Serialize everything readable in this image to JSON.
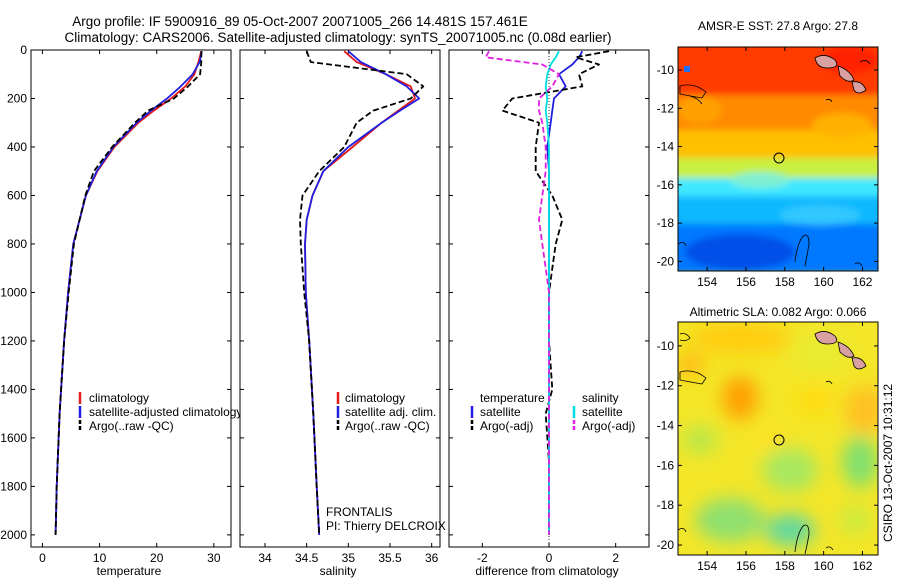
{
  "header": {
    "line1": "Argo profile: IF 5900916_89 05-Oct-2007 20071005_266 14.481S 157.461E",
    "line2": "Climatology: CARS2006. Satellite-adjusted climatology: synTS_20071005.nc (0.08d earlier)"
  },
  "colors": {
    "climatology": "#e41a1c",
    "satellite": "#1f1fe0",
    "argo": "#000000",
    "sal_satellite": "#00e0e0",
    "sal_argo": "#e020e0"
  },
  "chart_data": [
    {
      "id": "temperature",
      "type": "line",
      "xlabel": "temperature",
      "ylabel": "",
      "xlim": [
        -2,
        33
      ],
      "ylim": [
        2050,
        0
      ],
      "xticks": [
        0,
        10,
        20,
        30
      ],
      "yticks": [
        0,
        200,
        400,
        600,
        800,
        1000,
        1200,
        1400,
        1600,
        1800,
        2000
      ],
      "legend": [
        "climatology",
        "satellite-adjusted climatology",
        "Argo(..raw -QC)"
      ],
      "depth": [
        5,
        50,
        100,
        150,
        200,
        250,
        300,
        400,
        500,
        600,
        800,
        1000,
        1200,
        1500,
        1800,
        2000
      ],
      "series": [
        {
          "name": "climatology",
          "values": [
            27.8,
            27.3,
            26.6,
            25.0,
            22.5,
            19.5,
            16.8,
            12.6,
            9.6,
            7.6,
            5.4,
            4.5,
            3.8,
            3.0,
            2.5,
            2.3
          ]
        },
        {
          "name": "satellite-adjusted climatology",
          "values": [
            27.9,
            27.5,
            26.3,
            24.2,
            21.8,
            19.0,
            16.5,
            12.4,
            9.5,
            7.6,
            5.4,
            4.5,
            3.8,
            3.0,
            2.5,
            2.3
          ]
        },
        {
          "name": "Argo(..raw -QC)",
          "values": [
            27.8,
            27.8,
            27.6,
            25.5,
            23.0,
            18.5,
            16.2,
            12.2,
            9.0,
            7.5,
            5.5,
            4.6,
            3.8,
            3.0,
            2.5,
            2.3
          ]
        }
      ]
    },
    {
      "id": "salinity",
      "type": "line",
      "xlabel": "salinity",
      "ylabel": "",
      "xlim": [
        33.7,
        36.1
      ],
      "ylim": [
        2050,
        0
      ],
      "xticks": [
        34,
        34.5,
        35,
        35.5,
        36
      ],
      "legend": [
        "climatology",
        "satellite adj. clim.",
        "Argo(..raw -QC)"
      ],
      "annotation": [
        "FRONTALIS",
        "PI: Thierry DELCROIX"
      ],
      "depth": [
        5,
        50,
        100,
        150,
        200,
        250,
        300,
        400,
        500,
        600,
        700,
        800,
        1000,
        1200,
        1500,
        1800,
        2000
      ],
      "series": [
        {
          "name": "climatology",
          "values": [
            34.95,
            35.1,
            35.45,
            35.75,
            35.8,
            35.6,
            35.4,
            35.05,
            34.7,
            34.57,
            34.5,
            34.48,
            34.49,
            34.53,
            34.58,
            34.62,
            34.65
          ]
        },
        {
          "name": "satellite adj. clim.",
          "values": [
            35.0,
            35.15,
            35.45,
            35.7,
            35.85,
            35.62,
            35.4,
            35.0,
            34.7,
            34.57,
            34.5,
            34.48,
            34.49,
            34.53,
            34.58,
            34.62,
            34.65
          ]
        },
        {
          "name": "Argo(..raw -QC)",
          "values": [
            34.5,
            34.55,
            35.7,
            35.9,
            35.75,
            35.3,
            35.1,
            34.95,
            34.65,
            34.45,
            34.42,
            34.43,
            34.47,
            34.53,
            34.58,
            34.62,
            34.65
          ]
        }
      ]
    },
    {
      "id": "difference",
      "type": "line",
      "xlabel": "difference from climatology",
      "xlim": [
        -3,
        3
      ],
      "ylim": [
        2050,
        0
      ],
      "xticks": [
        -2,
        0,
        2
      ],
      "legend_temperature_title": "temperature",
      "legend_salinity_title": "salinity",
      "legend": [
        "satellite",
        "Argo(-adj)",
        "satellite",
        "Argo(-adj)"
      ],
      "depth": [
        5,
        30,
        60,
        100,
        150,
        200,
        250,
        300,
        400,
        500,
        600,
        700,
        800,
        900,
        1000,
        1200,
        1400,
        1500,
        1700,
        2000
      ],
      "series": [
        {
          "name": "temperature satellite",
          "values": [
            1.0,
            0.9,
            0.7,
            0.3,
            0.5,
            0.15,
            0.1,
            0.05,
            -0.05,
            0.0,
            0.0,
            0.0,
            0.0,
            0.0,
            0.0,
            0.0,
            0.0,
            0.0,
            0.0,
            0.0
          ]
        },
        {
          "name": "temperature Argo(-adj)",
          "values": [
            1.8,
            0.8,
            1.5,
            0.9,
            1.0,
            -1.1,
            -1.4,
            -0.3,
            -0.4,
            -0.4,
            0.1,
            0.4,
            0.2,
            0.1,
            0.0,
            0.0,
            0.1,
            -0.1,
            0.0,
            0.0
          ]
        },
        {
          "name": "salinity satellite",
          "values": [
            0.3,
            0.2,
            0.05,
            -0.05,
            -0.1,
            -0.05,
            -0.1,
            -0.05,
            0.0,
            0.0,
            0.0,
            0.0,
            0.0,
            0.0,
            0.0,
            0.0,
            0.0,
            0.0,
            0.0,
            0.0
          ]
        },
        {
          "name": "salinity Argo(-adj)",
          "values": [
            -1.8,
            -1.9,
            -0.2,
            0.3,
            0.1,
            -0.3,
            -0.3,
            -0.2,
            -0.1,
            -0.1,
            -0.2,
            -0.3,
            -0.2,
            -0.1,
            0.0,
            0.0,
            0.0,
            0.0,
            0.0,
            0.0
          ]
        }
      ]
    },
    {
      "id": "sst-map",
      "type": "heatmap",
      "title": "AMSR-E SST: 27.8 Argo: 27.8",
      "xticks": [
        154,
        156,
        158,
        160,
        162
      ],
      "yticks": [
        -10,
        -12,
        -14,
        -16,
        -18,
        -20
      ],
      "xlim": [
        152.5,
        162.8
      ],
      "ylim": [
        -20.5,
        -8.8
      ],
      "marker": {
        "lon": 157.461,
        "lat": -14.481
      }
    },
    {
      "id": "sla-map",
      "type": "heatmap",
      "title": "Altimetric SLA: 0.082 Argo: 0.066",
      "xticks": [
        154,
        156,
        158,
        160,
        162
      ],
      "yticks": [
        -10,
        -12,
        -14,
        -16,
        -18,
        -20
      ],
      "xlim": [
        152.5,
        162.8
      ],
      "ylim": [
        -20.5,
        -8.8
      ],
      "marker": {
        "lon": 157.461,
        "lat": -14.481
      }
    }
  ],
  "footer": {
    "side_stamp": "CSIRO 13-Oct-2007 10:31:12"
  }
}
